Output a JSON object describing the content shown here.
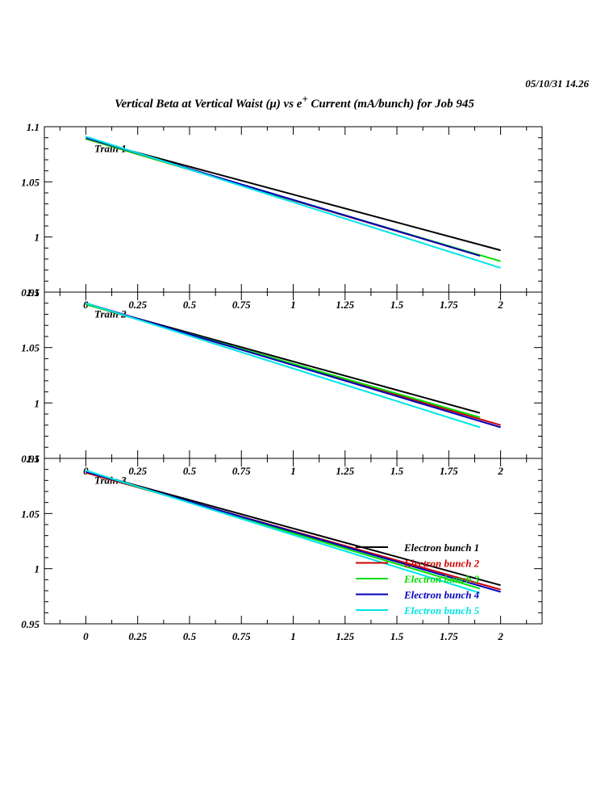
{
  "header": {
    "timestamp": "05/10/31   14.26",
    "title_main": "Vertical Beta at Vertical Waist (μ) vs e",
    "title_sup": "+",
    "title_rest": " Current (mA/bunch) for Job 945"
  },
  "chart_data": {
    "type": "line",
    "xlim": [
      -0.2,
      2.2
    ],
    "ylim": [
      0.95,
      1.1
    ],
    "x_ticks": [
      "0",
      "0.25",
      "0.5",
      "0.75",
      "1",
      "1.25",
      "1.5",
      "1.75",
      "2"
    ],
    "y_ticks": [
      "0.95",
      "1",
      "1.05",
      "1.1"
    ],
    "legend": {
      "location": "lower-right",
      "entries": [
        "Electron bunch 1",
        "Electron bunch 2",
        "Electron bunch 3",
        "Electron bunch 4",
        "Electron bunch 5"
      ]
    },
    "colors": [
      "#000000",
      "#cc0000",
      "#00dd00",
      "#0000bb",
      "#00e5e5"
    ],
    "panels": [
      {
        "label": "Train 1",
        "series": [
          {
            "x": [
              0,
              2
            ],
            "y": [
              1.089,
              0.988
            ]
          },
          {
            "x": [
              0,
              1.9
            ],
            "y": [
              1.089,
              0.983
            ]
          },
          {
            "x": [
              0,
              2
            ],
            "y": [
              1.089,
              0.978
            ]
          },
          {
            "x": [
              0,
              1.9
            ],
            "y": [
              1.09,
              0.983
            ]
          },
          {
            "x": [
              0,
              2
            ],
            "y": [
              1.091,
              0.972
            ]
          }
        ]
      },
      {
        "label": "Train 2",
        "series": [
          {
            "x": [
              0,
              1.9
            ],
            "y": [
              1.089,
              0.991
            ]
          },
          {
            "x": [
              0,
              2
            ],
            "y": [
              1.089,
              0.98
            ]
          },
          {
            "x": [
              0,
              1.9
            ],
            "y": [
              1.089,
              0.987
            ]
          },
          {
            "x": [
              0,
              2
            ],
            "y": [
              1.09,
              0.978
            ]
          },
          {
            "x": [
              0,
              1.9
            ],
            "y": [
              1.09,
              0.978
            ]
          }
        ]
      },
      {
        "label": "Train 3",
        "series": [
          {
            "x": [
              0,
              2
            ],
            "y": [
              1.088,
              0.985
            ]
          },
          {
            "x": [
              0,
              2
            ],
            "y": [
              1.087,
              0.981
            ]
          },
          {
            "x": [
              0,
              1.9
            ],
            "y": [
              1.088,
              0.982
            ]
          },
          {
            "x": [
              0,
              2
            ],
            "y": [
              1.088,
              0.979
            ]
          },
          {
            "x": [
              0,
              1.9
            ],
            "y": [
              1.089,
              0.978
            ]
          }
        ]
      }
    ]
  }
}
